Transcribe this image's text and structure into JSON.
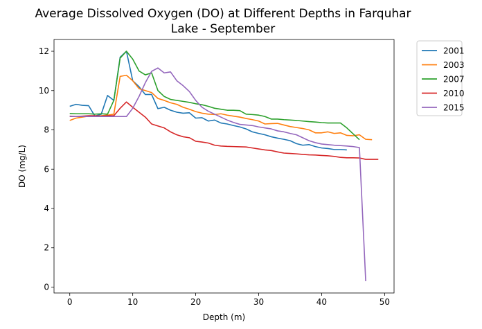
{
  "chart_data": {
    "type": "line",
    "title_lines": [
      "Average Dissolved Oxygen (DO) at Different Depths in Farquhar",
      "Lake - September"
    ],
    "xlabel": "Depth (m)",
    "ylabel": "DO (mg/L)",
    "xlim": [
      -2.5,
      51.5
    ],
    "ylim": [
      -0.3,
      12.6
    ],
    "xticks": [
      0,
      10,
      20,
      30,
      40,
      50
    ],
    "yticks": [
      0,
      2,
      4,
      6,
      8,
      10,
      12
    ],
    "grid": false,
    "legend_position": "outside-top-right",
    "series": [
      {
        "name": "2001",
        "color": "#1f77b4",
        "x": [
          0,
          1,
          2,
          3,
          4,
          5,
          6,
          7,
          8,
          9,
          10,
          11,
          12,
          13,
          14,
          15,
          16,
          17,
          18,
          19,
          20,
          21,
          22,
          23,
          24,
          25,
          26,
          27,
          28,
          29,
          30,
          31,
          32,
          33,
          34,
          35,
          36,
          37,
          38,
          39,
          40,
          41,
          42,
          43,
          44
        ],
        "y": [
          9.2,
          9.3,
          9.25,
          9.23,
          8.7,
          8.8,
          9.75,
          9.5,
          11.7,
          12.0,
          10.5,
          10.2,
          9.8,
          9.8,
          9.08,
          9.15,
          9.0,
          8.9,
          8.85,
          8.87,
          8.6,
          8.62,
          8.45,
          8.5,
          8.35,
          8.3,
          8.22,
          8.15,
          8.05,
          7.9,
          7.82,
          7.75,
          7.65,
          7.58,
          7.52,
          7.45,
          7.3,
          7.22,
          7.25,
          7.15,
          7.08,
          7.05,
          7.0,
          7.0,
          6.98
        ]
      },
      {
        "name": "2003",
        "color": "#ff7f0e",
        "x": [
          0,
          1,
          2,
          3,
          4,
          5,
          6,
          7,
          8,
          9,
          10,
          11,
          12,
          13,
          14,
          15,
          16,
          17,
          18,
          19,
          20,
          21,
          22,
          23,
          24,
          25,
          26,
          27,
          28,
          29,
          30,
          31,
          32,
          33,
          34,
          35,
          36,
          37,
          38,
          39,
          40,
          41,
          42,
          43,
          44,
          45,
          46,
          47,
          48
        ],
        "y": [
          8.48,
          8.6,
          8.65,
          8.7,
          8.7,
          8.72,
          8.75,
          8.8,
          10.72,
          10.78,
          10.5,
          10.1,
          10.0,
          9.9,
          9.6,
          9.5,
          9.38,
          9.3,
          9.15,
          9.05,
          8.93,
          8.85,
          8.8,
          8.78,
          8.82,
          8.75,
          8.7,
          8.65,
          8.58,
          8.52,
          8.45,
          8.3,
          8.32,
          8.33,
          8.25,
          8.17,
          8.12,
          8.07,
          8.0,
          7.85,
          7.85,
          7.9,
          7.82,
          7.85,
          7.72,
          7.7,
          7.75,
          7.52,
          7.5
        ]
      },
      {
        "name": "2007",
        "color": "#2ca02c",
        "x": [
          0,
          1,
          2,
          3,
          4,
          5,
          6,
          7,
          8,
          9,
          10,
          11,
          12,
          13,
          14,
          15,
          16,
          17,
          18,
          19,
          20,
          21,
          22,
          23,
          24,
          25,
          26,
          27,
          28,
          29,
          30,
          31,
          32,
          33,
          34,
          35,
          36,
          37,
          38,
          39,
          40,
          41,
          42,
          43,
          44,
          45,
          46
        ],
        "y": [
          8.83,
          8.82,
          8.82,
          8.82,
          8.8,
          8.82,
          8.8,
          9.5,
          11.65,
          12.0,
          11.6,
          11.0,
          10.8,
          10.9,
          10.0,
          9.7,
          9.55,
          9.5,
          9.45,
          9.4,
          9.33,
          9.28,
          9.2,
          9.1,
          9.05,
          9.0,
          9.0,
          8.98,
          8.8,
          8.78,
          8.75,
          8.68,
          8.55,
          8.55,
          8.52,
          8.5,
          8.48,
          8.45,
          8.42,
          8.4,
          8.37,
          8.35,
          8.35,
          8.35,
          8.1,
          7.8,
          7.5
        ]
      },
      {
        "name": "2010",
        "color": "#d62728",
        "x": [
          0,
          1,
          2,
          3,
          4,
          5,
          6,
          7,
          8,
          9,
          10,
          11,
          12,
          13,
          14,
          15,
          16,
          17,
          18,
          19,
          20,
          21,
          22,
          23,
          24,
          25,
          26,
          27,
          28,
          29,
          30,
          31,
          32,
          33,
          34,
          35,
          36,
          37,
          38,
          39,
          40,
          41,
          42,
          43,
          44,
          45,
          46,
          47,
          48,
          49
        ],
        "y": [
          8.7,
          8.68,
          8.7,
          8.72,
          8.72,
          8.7,
          8.72,
          8.72,
          9.1,
          9.42,
          9.15,
          8.9,
          8.65,
          8.3,
          8.2,
          8.1,
          7.9,
          7.75,
          7.65,
          7.6,
          7.42,
          7.38,
          7.33,
          7.22,
          7.18,
          7.16,
          7.15,
          7.14,
          7.13,
          7.08,
          7.03,
          6.98,
          6.95,
          6.88,
          6.82,
          6.8,
          6.78,
          6.75,
          6.73,
          6.72,
          6.7,
          6.68,
          6.65,
          6.6,
          6.58,
          6.58,
          6.57,
          6.5,
          6.5,
          6.5
        ]
      },
      {
        "name": "2015",
        "color": "#9467bd",
        "x": [
          0,
          1,
          2,
          3,
          4,
          5,
          6,
          7,
          8,
          9,
          10,
          11,
          12,
          13,
          14,
          15,
          16,
          17,
          18,
          19,
          20,
          21,
          22,
          23,
          24,
          25,
          26,
          27,
          28,
          29,
          30,
          31,
          32,
          33,
          34,
          35,
          36,
          37,
          38,
          39,
          40,
          41,
          42,
          43,
          44,
          45,
          46,
          47
        ],
        "y": [
          8.68,
          8.68,
          8.68,
          8.68,
          8.68,
          8.68,
          8.68,
          8.68,
          8.68,
          8.68,
          9.1,
          9.7,
          10.4,
          10.98,
          11.15,
          10.9,
          10.95,
          10.5,
          10.25,
          9.95,
          9.5,
          9.15,
          8.95,
          8.8,
          8.65,
          8.5,
          8.38,
          8.28,
          8.25,
          8.22,
          8.15,
          8.1,
          8.05,
          7.95,
          7.9,
          7.82,
          7.75,
          7.6,
          7.45,
          7.35,
          7.28,
          7.25,
          7.22,
          7.2,
          7.18,
          7.15,
          7.1,
          0.3
        ]
      }
    ]
  }
}
